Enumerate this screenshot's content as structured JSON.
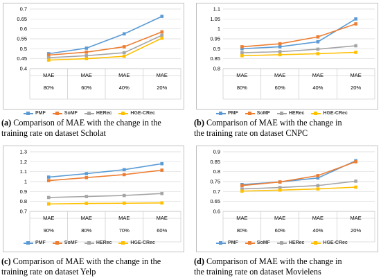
{
  "legend_series": [
    "PMF",
    "SoMF",
    "HERec",
    "HGE-CRec"
  ],
  "colors": {
    "PMF": "#5b9bd5",
    "SoMF": "#ed7d31",
    "HERec": "#a5a5a5",
    "HGE-CRec": "#ffc000"
  },
  "panels": [
    {
      "label": "(a)",
      "caption_line1": "Comparison of MAE with the change in the",
      "caption_line2": "training rate on dataset Scholat"
    },
    {
      "label": "(b)",
      "caption_line1": "Comparison of MAE with the change in",
      "caption_line2": "the training rate on dataset CNPC"
    },
    {
      "label": "(c)",
      "caption_line1": "Comparison of MAE with the change in the",
      "caption_line2": "training rate on dataset Yelp"
    },
    {
      "label": "(d)",
      "caption_line1": "Comparison of MAE with the change in",
      "caption_line2": "the training rate on dataset Movielens"
    }
  ],
  "chart_data": [
    {
      "type": "line",
      "categories": [
        "MAE",
        "MAE",
        "MAE",
        "MAE"
      ],
      "rates": [
        "80%",
        "60%",
        "40%",
        "20%"
      ],
      "ylim": [
        0.4,
        0.7
      ],
      "yticks": [
        "0.4",
        "0.45",
        "0.5",
        "0.55",
        "0.6",
        "0.65",
        "0.7"
      ],
      "series": [
        {
          "name": "PMF",
          "values": [
            0.475,
            0.503,
            0.575,
            0.663
          ]
        },
        {
          "name": "SoMF",
          "values": [
            0.468,
            0.483,
            0.51,
            0.585
          ]
        },
        {
          "name": "HERec",
          "values": [
            0.455,
            0.465,
            0.48,
            0.568
          ]
        },
        {
          "name": "HGE-CRec",
          "values": [
            0.443,
            0.45,
            0.462,
            0.553
          ]
        }
      ]
    },
    {
      "type": "line",
      "categories": [
        "MAE",
        "MAE",
        "MAE",
        "MAE"
      ],
      "rates": [
        "80%",
        "60%",
        "40%",
        "20%"
      ],
      "ylim": [
        0.8,
        1.1
      ],
      "yticks": [
        "0.8",
        "0.85",
        "0.9",
        "0.95",
        "1",
        "1.05",
        "1.1"
      ],
      "series": [
        {
          "name": "PMF",
          "values": [
            0.9,
            0.91,
            0.935,
            1.05
          ]
        },
        {
          "name": "SoMF",
          "values": [
            0.91,
            0.925,
            0.96,
            1.025
          ]
        },
        {
          "name": "HERec",
          "values": [
            0.88,
            0.885,
            0.898,
            0.915
          ]
        },
        {
          "name": "HGE-CRec",
          "values": [
            0.865,
            0.87,
            0.875,
            0.882
          ]
        }
      ]
    },
    {
      "type": "line",
      "categories": [
        "MAE",
        "MAE",
        "MAE",
        "MAE"
      ],
      "rates": [
        "90%",
        "80%",
        "70%",
        "60%"
      ],
      "ylim": [
        0.7,
        1.3
      ],
      "yticks": [
        "0.7",
        "0.8",
        "0.9",
        "1",
        "1.1",
        "1.2",
        "1.3"
      ],
      "series": [
        {
          "name": "PMF",
          "values": [
            1.045,
            1.08,
            1.12,
            1.18
          ]
        },
        {
          "name": "SoMF",
          "values": [
            1.01,
            1.04,
            1.07,
            1.115
          ]
        },
        {
          "name": "HERec",
          "values": [
            0.84,
            0.85,
            0.86,
            0.88
          ]
        },
        {
          "name": "HGE-CRec",
          "values": [
            0.775,
            0.78,
            0.782,
            0.785
          ]
        }
      ]
    },
    {
      "type": "line",
      "categories": [
        "MAE",
        "MAE",
        "MAE",
        "MAE"
      ],
      "rates": [
        "80%",
        "60%",
        "40%",
        "20%"
      ],
      "ylim": [
        0.6,
        0.9
      ],
      "yticks": [
        "0.6",
        "0.65",
        "0.7",
        "0.75",
        "0.8",
        "0.85",
        "0.9"
      ],
      "series": [
        {
          "name": "PMF",
          "values": [
            0.735,
            0.748,
            0.768,
            0.855
          ]
        },
        {
          "name": "SoMF",
          "values": [
            0.73,
            0.748,
            0.78,
            0.85
          ]
        },
        {
          "name": "HERec",
          "values": [
            0.713,
            0.72,
            0.73,
            0.752
          ]
        },
        {
          "name": "HGE-CRec",
          "values": [
            0.702,
            0.707,
            0.713,
            0.722
          ]
        }
      ]
    }
  ]
}
